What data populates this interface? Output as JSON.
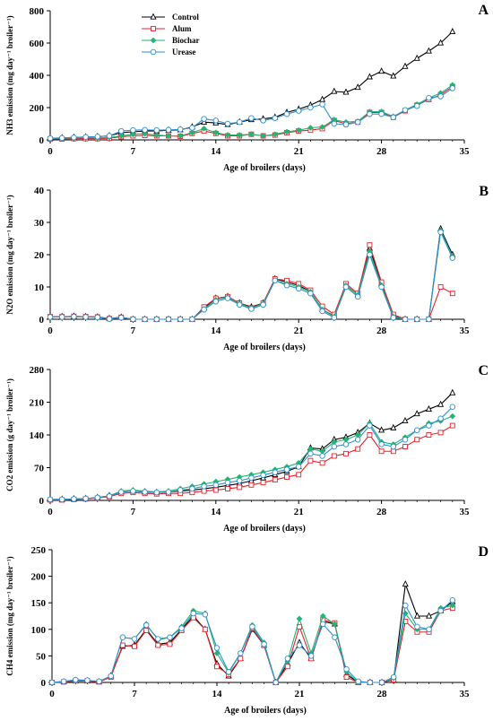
{
  "chart_data": [
    {
      "panel_label": "A",
      "type": "line",
      "xlabel": "Age of broilers  (days)",
      "ylabel": "NH3 emission (mg day⁻¹ broiler⁻¹)",
      "ylim": [
        0,
        800
      ],
      "yticks": [
        0,
        200,
        400,
        600,
        800
      ],
      "xlim": [
        0,
        35
      ],
      "xticks": [
        0,
        7,
        14,
        21,
        28,
        35
      ],
      "legend": "top-left",
      "x": [
        0,
        1,
        2,
        3,
        4,
        5,
        6,
        7,
        8,
        9,
        10,
        11,
        12,
        13,
        14,
        15,
        16,
        17,
        18,
        19,
        20,
        21,
        22,
        23,
        24,
        25,
        26,
        27,
        28,
        29,
        30,
        31,
        32,
        33,
        34
      ],
      "series": [
        {
          "name": "Control",
          "color": "#000000",
          "marker": "triangle",
          "values": [
            10,
            12,
            15,
            18,
            20,
            25,
            45,
            50,
            55,
            55,
            60,
            62,
            80,
            110,
            105,
            95,
            110,
            125,
            130,
            140,
            170,
            190,
            215,
            250,
            300,
            295,
            325,
            390,
            425,
            395,
            455,
            505,
            550,
            600,
            670
          ]
        },
        {
          "name": "Alum",
          "color": "#e8202a",
          "marker": "square",
          "values": [
            5,
            6,
            8,
            8,
            8,
            10,
            20,
            25,
            28,
            25,
            25,
            22,
            40,
            55,
            40,
            25,
            25,
            35,
            25,
            30,
            45,
            55,
            60,
            70,
            120,
            100,
            110,
            170,
            170,
            140,
            180,
            215,
            250,
            280,
            330
          ]
        },
        {
          "name": "Biochar",
          "color": "#22b573",
          "marker": "diamond",
          "values": [
            8,
            10,
            12,
            14,
            12,
            15,
            25,
            35,
            38,
            30,
            25,
            25,
            45,
            70,
            45,
            30,
            30,
            35,
            25,
            35,
            50,
            60,
            75,
            80,
            125,
            110,
            115,
            175,
            175,
            145,
            185,
            220,
            260,
            290,
            340
          ]
        },
        {
          "name": "Urease",
          "color": "#2e8fd0",
          "marker": "circle",
          "values": [
            10,
            12,
            15,
            18,
            20,
            25,
            55,
            60,
            62,
            60,
            62,
            65,
            75,
            130,
            120,
            100,
            110,
            135,
            120,
            135,
            160,
            180,
            200,
            220,
            100,
            95,
            110,
            160,
            160,
            140,
            185,
            210,
            260,
            270,
            320
          ]
        }
      ]
    },
    {
      "panel_label": "B",
      "type": "line",
      "xlabel": "Age of broilers  (days)",
      "ylabel": "N2O emission (mg day⁻¹ broiler⁻¹)",
      "ylim": [
        0,
        40
      ],
      "yticks": [
        0,
        10,
        20,
        30,
        40
      ],
      "xlim": [
        0,
        35
      ],
      "xticks": [
        0,
        7,
        14,
        21,
        28,
        35
      ],
      "x": [
        0,
        1,
        2,
        3,
        4,
        5,
        6,
        7,
        8,
        9,
        10,
        11,
        12,
        13,
        14,
        15,
        16,
        17,
        18,
        19,
        20,
        21,
        22,
        23,
        24,
        25,
        26,
        27,
        28,
        29,
        30,
        31,
        32,
        33,
        34
      ],
      "series": [
        {
          "name": "Control",
          "color": "#000000",
          "marker": "triangle",
          "values": [
            0.8,
            0.8,
            0.9,
            0.8,
            0.7,
            0.2,
            0.6,
            0,
            0,
            0,
            0,
            0,
            0,
            3.5,
            6.5,
            7,
            5,
            3.8,
            5,
            12.5,
            11.5,
            10.5,
            8.5,
            3,
            1,
            10.5,
            7.5,
            22,
            11,
            1,
            0,
            0,
            0,
            28,
            20
          ]
        },
        {
          "name": "Alum",
          "color": "#e8202a",
          "marker": "square",
          "values": [
            0.8,
            0.8,
            0.9,
            0.8,
            0.7,
            0.2,
            0.6,
            0,
            0,
            0,
            0,
            0,
            0,
            3.8,
            6.5,
            7,
            5,
            3.5,
            5,
            12.5,
            12,
            11,
            9,
            4,
            1.5,
            11,
            8,
            23,
            11.5,
            1.5,
            0,
            0,
            0,
            10,
            8
          ]
        },
        {
          "name": "Biochar",
          "color": "#22b573",
          "marker": "diamond",
          "values": [
            0.7,
            0.7,
            0.8,
            0.7,
            0.6,
            0.1,
            0.5,
            0,
            0,
            0,
            0,
            0,
            0,
            3.2,
            6,
            6.8,
            4.8,
            3.5,
            4.8,
            12,
            11,
            10,
            8.5,
            3,
            0.8,
            10.5,
            7.5,
            21,
            10.5,
            0.8,
            0,
            0,
            0,
            27.5,
            19.5
          ]
        },
        {
          "name": "Urease",
          "color": "#2e8fd0",
          "marker": "circle",
          "values": [
            0.7,
            0.7,
            0.8,
            0.7,
            0.6,
            0.1,
            0.5,
            0,
            0,
            0,
            0,
            0,
            0,
            3,
            5.5,
            6.5,
            4.5,
            3.2,
            4.5,
            12,
            10.5,
            9.5,
            8,
            2.5,
            0.5,
            10,
            7,
            20,
            10,
            0.5,
            0,
            0,
            0,
            27,
            19
          ]
        }
      ]
    },
    {
      "panel_label": "C",
      "type": "line",
      "xlabel": "Age of broilers  (days)",
      "ylabel": "CO2 emission (g day⁻¹ broiler⁻¹)",
      "ylim": [
        0,
        280
      ],
      "yticks": [
        0,
        70,
        140,
        210,
        280
      ],
      "xlim": [
        0,
        35
      ],
      "xticks": [
        0,
        7,
        14,
        21,
        28,
        35
      ],
      "x": [
        0,
        1,
        2,
        3,
        4,
        5,
        6,
        7,
        8,
        9,
        10,
        11,
        12,
        13,
        14,
        15,
        16,
        17,
        18,
        19,
        20,
        21,
        22,
        23,
        24,
        25,
        26,
        27,
        28,
        29,
        30,
        31,
        32,
        33,
        34
      ],
      "series": [
        {
          "name": "Control",
          "color": "#000000",
          "marker": "triangle",
          "values": [
            2,
            2,
            3,
            4,
            6,
            10,
            18,
            20,
            18,
            17,
            18,
            20,
            22,
            25,
            28,
            32,
            36,
            42,
            48,
            55,
            62,
            72,
            112,
            110,
            130,
            135,
            145,
            165,
            150,
            155,
            170,
            185,
            195,
            205,
            230
          ]
        },
        {
          "name": "Alum",
          "color": "#e8202a",
          "marker": "square",
          "values": [
            1,
            1,
            2,
            3,
            5,
            8,
            15,
            17,
            15,
            14,
            15,
            15,
            17,
            20,
            22,
            25,
            28,
            33,
            38,
            44,
            50,
            55,
            85,
            80,
            95,
            100,
            110,
            140,
            105,
            105,
            115,
            130,
            140,
            145,
            160
          ]
        },
        {
          "name": "Biochar",
          "color": "#22b573",
          "marker": "diamond",
          "values": [
            2,
            2,
            3,
            4,
            6,
            10,
            20,
            22,
            20,
            18,
            20,
            25,
            30,
            35,
            40,
            45,
            50,
            55,
            60,
            66,
            72,
            80,
            110,
            105,
            125,
            130,
            140,
            165,
            125,
            120,
            135,
            150,
            165,
            170,
            180
          ]
        },
        {
          "name": "Urease",
          "color": "#2e8fd0",
          "marker": "circle",
          "values": [
            2,
            2,
            3,
            4,
            6,
            9,
            18,
            20,
            18,
            17,
            18,
            22,
            25,
            30,
            33,
            38,
            42,
            48,
            54,
            60,
            66,
            72,
            100,
            95,
            115,
            120,
            130,
            160,
            120,
            115,
            130,
            150,
            160,
            175,
            200
          ]
        }
      ]
    },
    {
      "panel_label": "D",
      "type": "line",
      "xlabel": "Age of broilers  (days)",
      "ylabel": "CH4 emission (mg day⁻¹ broiler⁻¹)",
      "ylim": [
        0,
        250
      ],
      "yticks": [
        0,
        50,
        100,
        150,
        200,
        250
      ],
      "xlim": [
        0,
        35
      ],
      "xticks": [
        0,
        7,
        14,
        21,
        28,
        35
      ],
      "x": [
        0,
        1,
        2,
        3,
        4,
        5,
        6,
        7,
        8,
        9,
        10,
        11,
        12,
        13,
        14,
        15,
        16,
        17,
        18,
        19,
        20,
        21,
        22,
        23,
        24,
        25,
        26,
        27,
        28,
        29,
        30,
        31,
        32,
        33,
        34
      ],
      "series": [
        {
          "name": "Control",
          "color": "#000000",
          "marker": "triangle",
          "values": [
            0,
            1,
            3,
            3,
            1,
            12,
            68,
            70,
            100,
            72,
            75,
            100,
            125,
            100,
            35,
            12,
            45,
            100,
            70,
            0,
            35,
            75,
            45,
            115,
            110,
            15,
            0,
            0,
            0,
            5,
            185,
            125,
            125,
            135,
            152
          ]
        },
        {
          "name": "Alum",
          "color": "#e8202a",
          "marker": "square",
          "values": [
            0,
            1,
            3,
            3,
            1,
            10,
            70,
            68,
            98,
            70,
            72,
            98,
            122,
            100,
            30,
            15,
            45,
            102,
            70,
            0,
            30,
            105,
            45,
            118,
            112,
            10,
            0,
            0,
            0,
            5,
            115,
            95,
            95,
            135,
            140
          ]
        },
        {
          "name": "Biochar",
          "color": "#22b573",
          "marker": "diamond",
          "values": [
            0,
            2,
            5,
            4,
            2,
            12,
            85,
            82,
            110,
            80,
            85,
            105,
            135,
            130,
            55,
            18,
            55,
            108,
            75,
            0,
            40,
            120,
            55,
            125,
            110,
            20,
            0,
            0,
            0,
            8,
            130,
            100,
            100,
            140,
            145
          ]
        },
        {
          "name": "Urease",
          "color": "#2e8fd0",
          "marker": "circle",
          "values": [
            0,
            2,
            5,
            4,
            2,
            12,
            85,
            82,
            108,
            82,
            85,
            102,
            130,
            128,
            65,
            20,
            55,
            105,
            72,
            0,
            45,
            70,
            50,
            110,
            85,
            25,
            2,
            0,
            0,
            10,
            145,
            105,
            100,
            135,
            155
          ]
        }
      ]
    }
  ]
}
